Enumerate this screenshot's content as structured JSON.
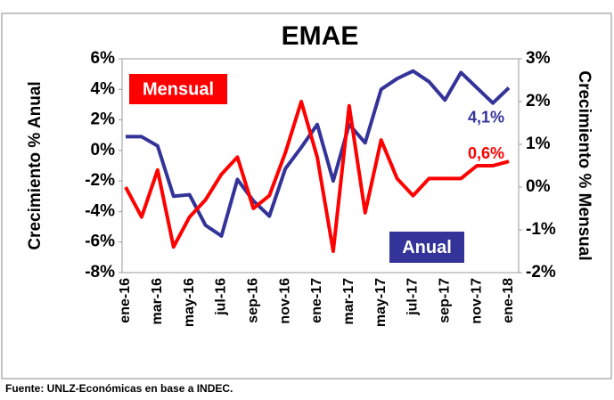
{
  "chart_data": {
    "type": "line",
    "title": "EMAE",
    "y_label": "Crecimiento % Anual",
    "y2_label": "Crecimiento % Mensual",
    "source": "Fuente: UNLZ-Económicas en base a INDEC.",
    "categories": [
      "ene-16",
      null,
      "mar-16",
      null,
      "may-16",
      null,
      "jul-16",
      null,
      "sep-16",
      null,
      "nov-16",
      null,
      "ene-17",
      null,
      "mar-17",
      null,
      "may-17",
      null,
      "jul-17",
      null,
      "sep-17",
      null,
      "nov-17",
      null,
      "ene-18"
    ],
    "series": [
      {
        "name": "Anual",
        "color": "#333399",
        "values": [
          0.9,
          0.9,
          0.3,
          -3.0,
          -2.9,
          -4.9,
          -5.6,
          -1.9,
          -3.3,
          -4.3,
          -1.2,
          0.2,
          1.7,
          -2.0,
          1.7,
          0.5,
          4.0,
          4.7,
          5.2,
          4.5,
          3.3,
          5.1,
          4.1,
          3.1,
          4.1
        ],
        "value_labels": [
          null,
          null,
          null,
          null,
          null,
          null,
          null,
          null,
          null,
          null,
          null,
          null,
          null,
          null,
          null,
          null,
          null,
          null,
          null,
          null,
          null,
          null,
          null,
          null,
          "4,1%"
        ]
      },
      {
        "name": "Mensual",
        "color": "#ff0000",
        "axis": "y2",
        "values": [
          0.0,
          -0.7,
          0.4,
          -1.4,
          -0.7,
          -0.3,
          0.3,
          0.7,
          -0.5,
          -0.2,
          0.8,
          2.0,
          0.7,
          -1.5,
          1.9,
          -0.6,
          1.1,
          0.2,
          -0.2,
          0.2,
          0.2,
          0.2,
          0.5,
          0.5,
          0.6
        ],
        "value_labels": [
          null,
          null,
          null,
          null,
          null,
          null,
          null,
          null,
          null,
          null,
          null,
          null,
          null,
          null,
          null,
          null,
          null,
          null,
          null,
          null,
          null,
          null,
          null,
          null,
          "0,6%"
        ]
      }
    ],
    "ylim": [
      -8,
      6
    ],
    "yticks": [
      {
        "value": -8,
        "label": "-8%"
      },
      {
        "value": -6,
        "label": "-6%"
      },
      {
        "value": -4,
        "label": "-4%"
      },
      {
        "value": -2,
        "label": "-2%"
      },
      {
        "value": 0,
        "label": "0%"
      },
      {
        "value": 2,
        "label": "2%"
      },
      {
        "value": 4,
        "label": "4%"
      },
      {
        "value": 6,
        "label": "6%"
      }
    ],
    "y2lim": [
      -2,
      3
    ],
    "y2ticks": [
      {
        "value": -2,
        "label": "-2%"
      },
      {
        "value": -1,
        "label": "-1%"
      },
      {
        "value": 0,
        "label": "0%"
      },
      {
        "value": 1,
        "label": "1%"
      },
      {
        "value": 2,
        "label": "2%"
      },
      {
        "value": 3,
        "label": "3%"
      }
    ]
  }
}
